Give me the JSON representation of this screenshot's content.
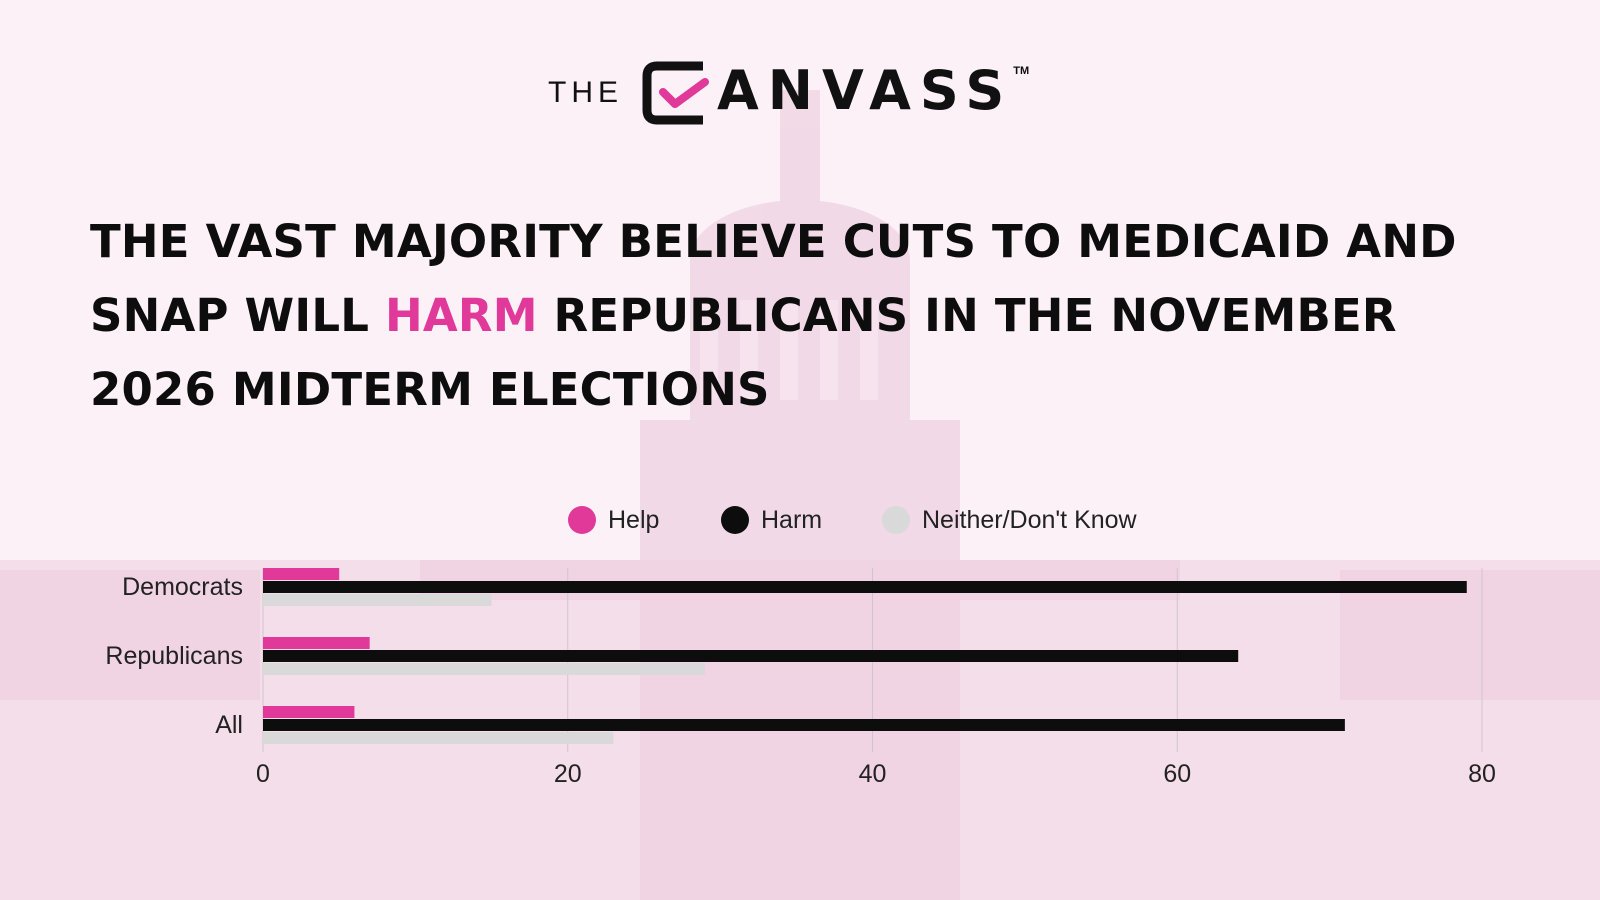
{
  "brand": {
    "the": "THE",
    "word": "ANVASS",
    "tm": "TM",
    "accent_color": "#e0399a"
  },
  "headline": {
    "before": "THE VAST MAJORITY BELIEVE CUTS TO MEDICAID AND SNAP WILL ",
    "accent": "HARM",
    "after": " REPUBLICANS IN THE NOVEMBER 2026 MIDTERM ELECTIONS"
  },
  "chart_data": {
    "type": "bar",
    "orientation": "horizontal",
    "categories": [
      "Democrats",
      "Republicans",
      "All"
    ],
    "series": [
      {
        "name": "Help",
        "color": "#e0399a",
        "values": [
          5,
          7,
          6
        ]
      },
      {
        "name": "Harm",
        "color": "#0d0d0d",
        "values": [
          79,
          64,
          71
        ]
      },
      {
        "name": "Neither/Don't Know",
        "color": "#d9d9d9",
        "values": [
          15,
          29,
          23
        ]
      }
    ],
    "xlim": [
      0,
      80
    ],
    "xticks": [
      0,
      20,
      40,
      60,
      80
    ],
    "grid": true,
    "legend_position": "top"
  }
}
